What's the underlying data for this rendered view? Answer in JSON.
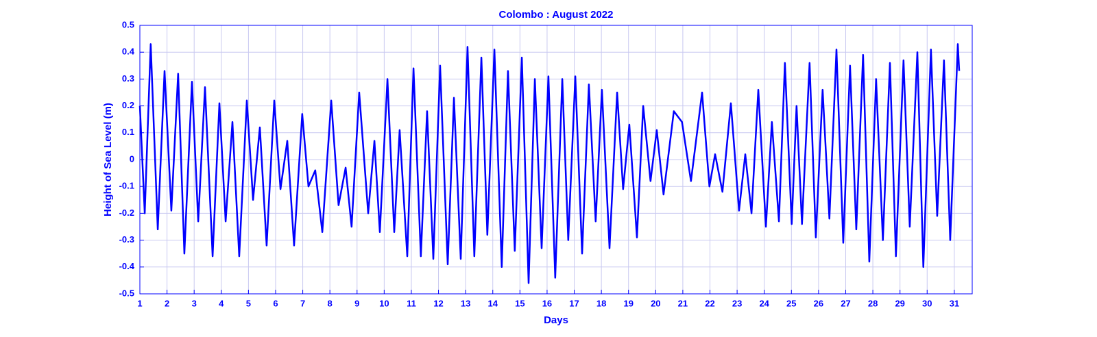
{
  "chart_data": {
    "type": "line",
    "title": "Colombo  : August 2022",
    "xlabel": "Days",
    "ylabel": "Height of Sea Level (m)",
    "xlim": [
      1,
      31.66
    ],
    "ylim": [
      -0.5,
      0.5
    ],
    "xticks": [
      1,
      2,
      3,
      4,
      5,
      6,
      7,
      8,
      9,
      10,
      11,
      12,
      13,
      14,
      15,
      16,
      17,
      18,
      19,
      20,
      21,
      22,
      23,
      24,
      25,
      26,
      27,
      28,
      29,
      30,
      31
    ],
    "yticks": [
      -0.5,
      -0.4,
      -0.3,
      -0.2,
      -0.1,
      0,
      0.1,
      0.2,
      0.3,
      0.4,
      0.5
    ],
    "grid": true,
    "series": [
      {
        "name": "Sea level",
        "color": "#0000ff",
        "x": [
          1.0,
          1.18,
          1.4,
          1.66,
          1.91,
          2.16,
          2.41,
          2.64,
          2.92,
          3.15,
          3.4,
          3.68,
          3.93,
          4.16,
          4.41,
          4.66,
          4.94,
          5.17,
          5.42,
          5.67,
          5.95,
          6.18,
          6.43,
          6.68,
          6.98,
          7.21,
          7.46,
          7.72,
          8.05,
          8.32,
          8.58,
          8.8,
          9.08,
          9.41,
          9.64,
          9.84,
          10.12,
          10.37,
          10.57,
          10.85,
          11.08,
          11.35,
          11.58,
          11.81,
          12.06,
          12.34,
          12.57,
          12.82,
          13.07,
          13.32,
          13.58,
          13.8,
          14.06,
          14.33,
          14.56,
          14.81,
          15.07,
          15.32,
          15.55,
          15.8,
          16.05,
          16.3,
          16.56,
          16.78,
          17.04,
          17.29,
          17.54,
          17.79,
          18.02,
          18.3,
          18.58,
          18.8,
          19.03,
          19.31,
          19.54,
          19.81,
          20.04,
          20.29,
          20.67,
          20.97,
          21.3,
          21.71,
          21.98,
          22.19,
          22.46,
          22.77,
          23.07,
          23.3,
          23.53,
          23.78,
          24.06,
          24.28,
          24.54,
          24.76,
          25.01,
          25.19,
          25.39,
          25.67,
          25.9,
          26.15,
          26.4,
          26.66,
          26.91,
          27.16,
          27.39,
          27.64,
          27.87,
          28.12,
          28.37,
          28.63,
          28.85,
          29.13,
          29.36,
          29.64,
          29.86,
          30.14,
          30.37,
          30.62,
          30.85,
          31.13,
          31.18
        ],
        "values": [
          0.2,
          -0.2,
          0.43,
          -0.26,
          0.33,
          -0.19,
          0.32,
          -0.35,
          0.29,
          -0.23,
          0.27,
          -0.36,
          0.21,
          -0.23,
          0.14,
          -0.36,
          0.22,
          -0.15,
          0.12,
          -0.32,
          0.22,
          -0.11,
          0.07,
          -0.32,
          0.17,
          -0.1,
          -0.04,
          -0.27,
          0.22,
          -0.17,
          -0.03,
          -0.25,
          0.25,
          -0.2,
          0.07,
          -0.27,
          0.3,
          -0.27,
          0.11,
          -0.36,
          0.34,
          -0.36,
          0.18,
          -0.37,
          0.35,
          -0.39,
          0.23,
          -0.37,
          0.42,
          -0.36,
          0.38,
          -0.28,
          0.41,
          -0.4,
          0.33,
          -0.34,
          0.38,
          -0.46,
          0.3,
          -0.33,
          0.31,
          -0.44,
          0.3,
          -0.3,
          0.31,
          -0.35,
          0.28,
          -0.23,
          0.26,
          -0.33,
          0.25,
          -0.11,
          0.13,
          -0.29,
          0.2,
          -0.08,
          0.11,
          -0.13,
          0.18,
          0.14,
          -0.08,
          0.25,
          -0.1,
          0.02,
          -0.12,
          0.21,
          -0.19,
          0.02,
          -0.2,
          0.26,
          -0.25,
          0.14,
          -0.23,
          0.36,
          -0.24,
          0.2,
          -0.24,
          0.36,
          -0.29,
          0.26,
          -0.22,
          0.41,
          -0.31,
          0.35,
          -0.26,
          0.39,
          -0.38,
          0.3,
          -0.3,
          0.36,
          -0.36,
          0.37,
          -0.25,
          0.4,
          -0.4,
          0.41,
          -0.21,
          0.37,
          -0.3,
          0.43,
          0.33
        ]
      }
    ]
  }
}
